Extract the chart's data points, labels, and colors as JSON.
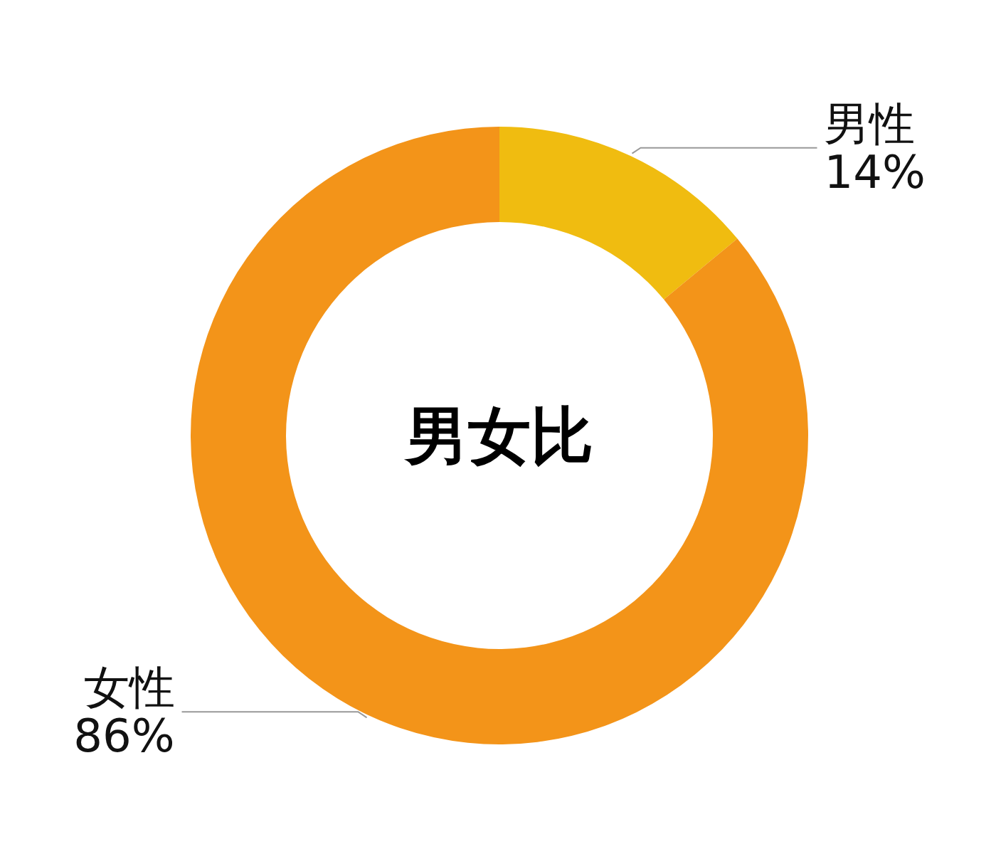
{
  "chart_data": {
    "type": "donut",
    "title": "男女比",
    "categories": [
      "男性",
      "女性"
    ],
    "values": [
      14,
      86
    ],
    "colors": [
      "#f0bc10",
      "#f39419"
    ],
    "value_labels": [
      "14%",
      "86%"
    ]
  }
}
